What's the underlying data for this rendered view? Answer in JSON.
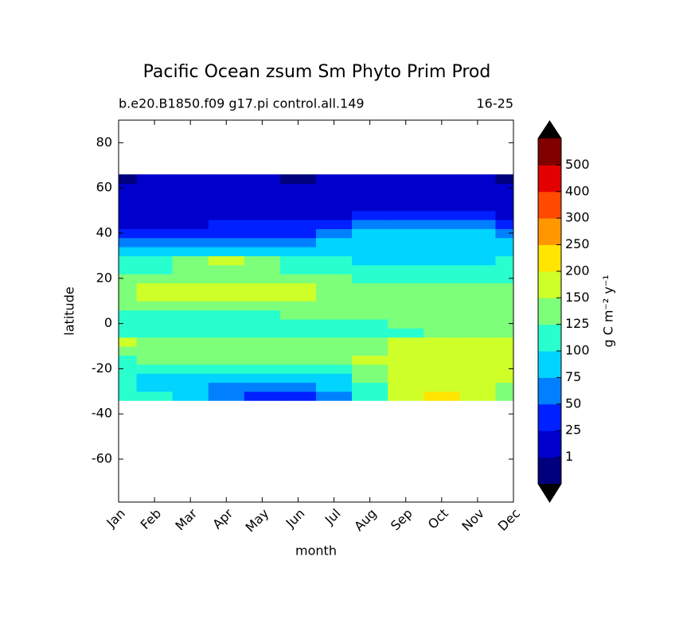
{
  "chart_data": {
    "type": "contour",
    "title": "Pacific Ocean zsum Sm Phyto Prim Prod",
    "subtitle": "b.e20.B1850.f09 g17.pi control.all.149",
    "subtitle_right": "16-25",
    "xlabel": "month",
    "ylabel": "latitude",
    "colorbar_label": "g C m⁻² y⁻¹",
    "categories": [
      "Jan",
      "Feb",
      "Mar",
      "Apr",
      "May",
      "Jun",
      "Jul",
      "Aug",
      "Sep",
      "Oct",
      "Nov",
      "Dec"
    ],
    "ylim": [
      -79,
      90
    ],
    "yticks": [
      -60,
      -40,
      -20,
      0,
      20,
      40,
      60,
      80
    ],
    "levels": [
      1,
      25,
      50,
      75,
      100,
      125,
      150,
      200,
      250,
      300,
      400,
      500
    ],
    "colors": [
      "#00007f",
      "#0000cd",
      "#0020ff",
      "#0080ff",
      "#00d4ff",
      "#29ffce",
      "#7dff7a",
      "#ceff29",
      "#ffe500",
      "#ff9800",
      "#ff4a00",
      "#e30000",
      "#800000"
    ],
    "extend_color": "#000000",
    "y": [
      -32,
      -28,
      -24,
      -20,
      -16,
      -12,
      -8,
      -4,
      0,
      4,
      8,
      12,
      16,
      20,
      24,
      28,
      32,
      36,
      40,
      44,
      48,
      52,
      56,
      60,
      64
    ],
    "z": [
      [
        110,
        105,
        90,
        70,
        45,
        40,
        55,
        100,
        160,
        210,
        175,
        140
      ],
      [
        105,
        95,
        75,
        70,
        65,
        70,
        85,
        120,
        160,
        170,
        165,
        145
      ],
      [
        100,
        90,
        85,
        80,
        80,
        85,
        95,
        130,
        165,
        170,
        165,
        150
      ],
      [
        105,
        110,
        115,
        115,
        112,
        110,
        120,
        145,
        165,
        165,
        160,
        155
      ],
      [
        120,
        125,
        128,
        128,
        126,
        125,
        130,
        150,
        160,
        160,
        160,
        160
      ],
      [
        140,
        140,
        135,
        135,
        130,
        128,
        130,
        140,
        155,
        160,
        160,
        158
      ],
      [
        150,
        145,
        130,
        130,
        130,
        128,
        130,
        145,
        155,
        155,
        155,
        155
      ],
      [
        110,
        112,
        112,
        112,
        110,
        110,
        112,
        115,
        120,
        125,
        125,
        125
      ],
      [
        105,
        110,
        110,
        110,
        110,
        115,
        115,
        120,
        125,
        128,
        125,
        130
      ],
      [
        120,
        120,
        120,
        120,
        120,
        125,
        126,
        128,
        130,
        130,
        128,
        125
      ],
      [
        130,
        135,
        140,
        140,
        135,
        130,
        130,
        128,
        128,
        128,
        130,
        128
      ],
      [
        145,
        155,
        160,
        160,
        160,
        150,
        140,
        130,
        130,
        130,
        135,
        130
      ],
      [
        140,
        155,
        160,
        160,
        160,
        155,
        140,
        130,
        130,
        130,
        140,
        135
      ],
      [
        125,
        128,
        130,
        130,
        130,
        128,
        125,
        120,
        115,
        110,
        110,
        120
      ],
      [
        115,
        120,
        130,
        140,
        130,
        120,
        115,
        105,
        100,
        100,
        100,
        110
      ],
      [
        105,
        110,
        130,
        160,
        140,
        110,
        100,
        95,
        95,
        95,
        95,
        100
      ],
      [
        80,
        85,
        90,
        95,
        90,
        88,
        90,
        92,
        92,
        92,
        90,
        85
      ],
      [
        55,
        60,
        65,
        70,
        70,
        72,
        78,
        90,
        90,
        90,
        90,
        80
      ],
      [
        30,
        35,
        40,
        45,
        40,
        45,
        55,
        80,
        85,
        85,
        80,
        60
      ],
      [
        24,
        24,
        24,
        26,
        27,
        30,
        35,
        55,
        60,
        60,
        55,
        40
      ],
      [
        20,
        20,
        20,
        20,
        20,
        22,
        24,
        27,
        28,
        28,
        26,
        22
      ],
      [
        20,
        20,
        20,
        20,
        20,
        20,
        20,
        20,
        22,
        22,
        22,
        22
      ],
      [
        18,
        18,
        18,
        18,
        18,
        18,
        18,
        18,
        18,
        18,
        18,
        18
      ],
      [
        15,
        15,
        15,
        15,
        15,
        15,
        15,
        15,
        15,
        15,
        15,
        15
      ],
      [
        0.5,
        5,
        10,
        10,
        10,
        0.8,
        10,
        10,
        10,
        10,
        5,
        0.5
      ]
    ]
  }
}
